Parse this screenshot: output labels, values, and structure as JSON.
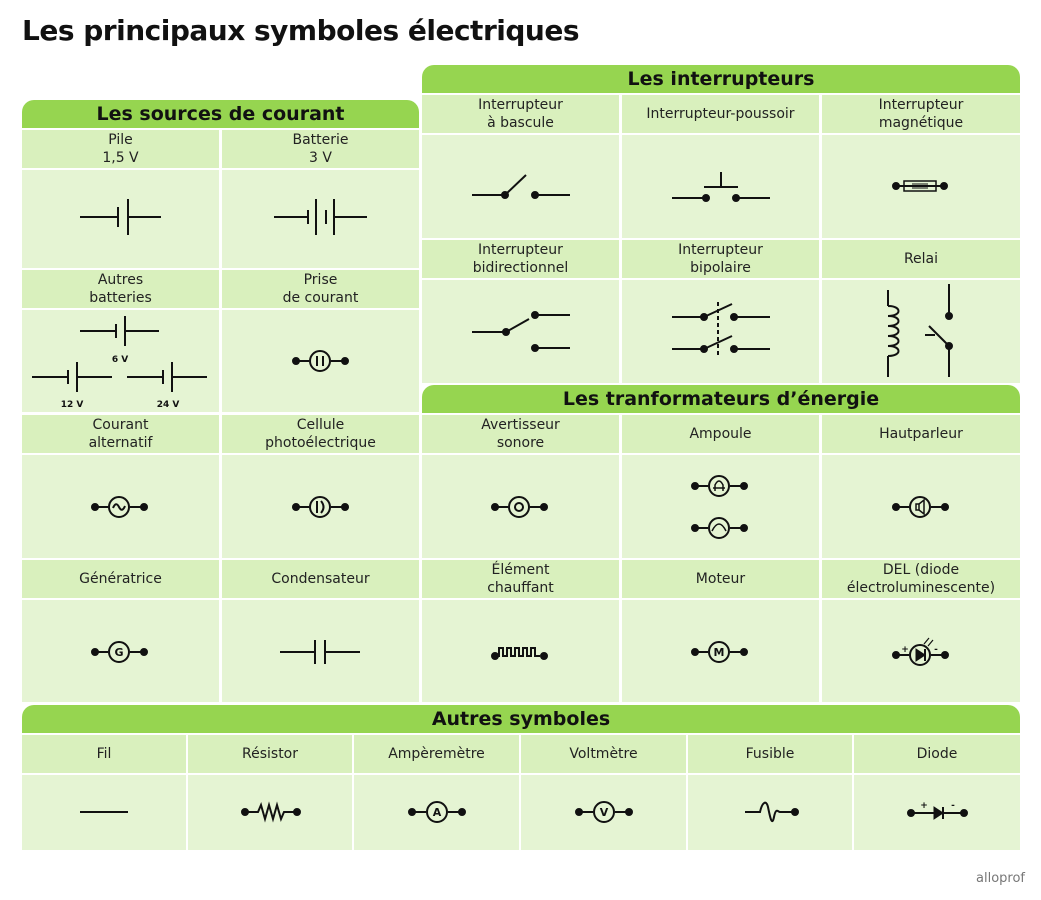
{
  "title": "Les principaux symboles électriques",
  "brand": "alloprof",
  "sources": {
    "header": "Les sources de courant",
    "pile": "Pile\n1,5 V",
    "batterie": "Batterie\n3 V",
    "autres_batteries": "Autres\nbatteries",
    "prise": "Prise\nde courant",
    "courant_alternatif": "Courant\nalternatif",
    "cellule": "Cellule\nphotoélectrique",
    "generatrice": "Génératrice",
    "condensateur": "Condensateur",
    "volt_6": "6 V",
    "volt_12": "12 V",
    "volt_24": "24 V",
    "g_letter": "G"
  },
  "interrupteurs": {
    "header": "Les interrupteurs",
    "bascule": "Interrupteur\nà bascule",
    "poussoir": "Interrupteur-poussoir",
    "magnetique": "Interrupteur\nmagnétique",
    "bidirectionnel": "Interrupteur\nbidirectionnel",
    "bipolaire": "Interrupteur\nbipolaire",
    "relai": "Relai"
  },
  "transformateurs": {
    "header": "Les tranformateurs d’énergie",
    "avertisseur": "Avertisseur\nsonore",
    "ampoule": "Ampoule",
    "hautparleur": "Hautparleur",
    "element": "Élément\nchauffant",
    "moteur": "Moteur",
    "del": "DEL (diode\nélectroluminescente)",
    "m_letter": "M",
    "plus": "+",
    "minus": "-"
  },
  "autres": {
    "header": "Autres symboles",
    "fil": "Fil",
    "resistor": "Résistor",
    "amperemetre": "Ampèremètre",
    "voltmetre": "Voltmètre",
    "fusible": "Fusible",
    "diode": "Diode",
    "a_letter": "A",
    "v_letter": "V",
    "plus": "+",
    "minus": "-"
  }
}
